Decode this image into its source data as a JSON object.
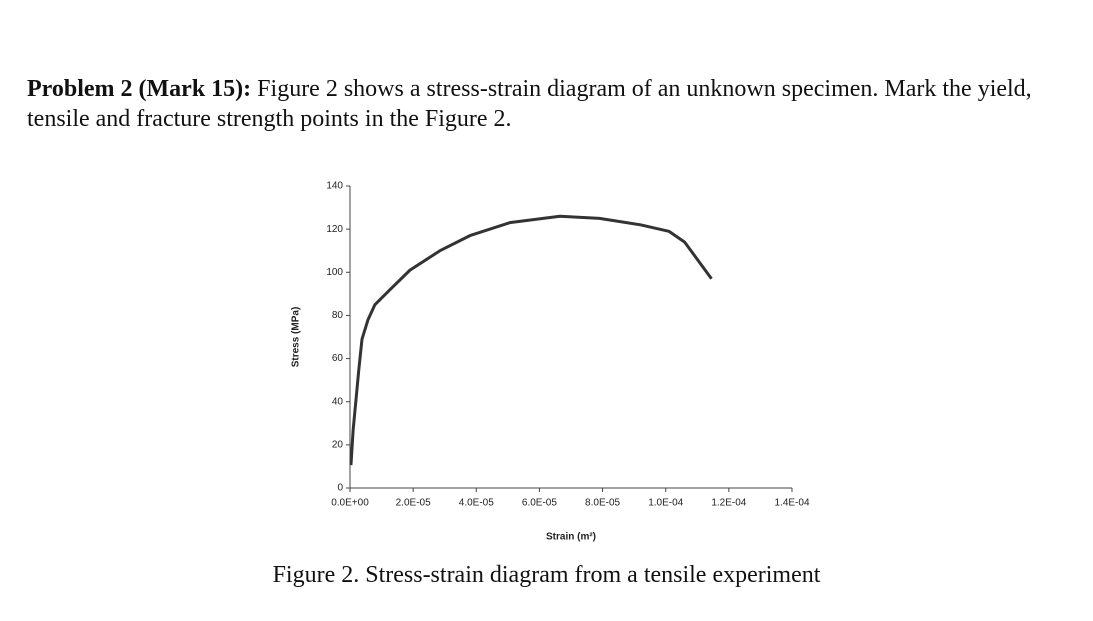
{
  "problem": {
    "label": "Problem 2 (Mark 15):",
    "text": "Figure 2 shows a stress-strain diagram of an unknown specimen. Mark the yield, tensile and fracture strength points in the Figure 2."
  },
  "caption": "Figure 2. Stress-strain diagram from a tensile experiment",
  "chart_data": {
    "type": "line",
    "xlabel": "Strain (m²)",
    "ylabel": "Stress (MPa)",
    "x": [
      3e-07,
      1e-06,
      1.9e-06,
      2.8e-06,
      3.8e-06,
      5.7e-06,
      7.9e-06,
      1.27e-05,
      1.9e-05,
      2.85e-05,
      3.8e-05,
      5.06e-05,
      6.65e-05,
      7.9e-05,
      9.2e-05,
      0.000101,
      0.000106,
      0.0001145
    ],
    "series": [
      {
        "name": "Stress",
        "color": "#333333",
        "values": [
          10.6,
          27,
          41,
          55,
          69,
          78,
          85,
          92,
          101,
          110,
          117,
          123,
          126,
          125,
          122,
          119,
          114,
          97
        ]
      }
    ],
    "xlim": [
      0,
      0.00014
    ],
    "ylim": [
      0,
      140
    ],
    "xticks": [
      {
        "value": 0,
        "label": "0.0E+00"
      },
      {
        "value": 2e-05,
        "label": "2.0E-05"
      },
      {
        "value": 4e-05,
        "label": "4.0E-05"
      },
      {
        "value": 6e-05,
        "label": "6.0E-05"
      },
      {
        "value": 8e-05,
        "label": "8.0E-05"
      },
      {
        "value": 0.0001,
        "label": "1.0E-04"
      },
      {
        "value": 0.00012,
        "label": "1.2E-04"
      },
      {
        "value": 0.00014,
        "label": "1.4E-04"
      }
    ],
    "yticks": [
      0,
      20,
      40,
      60,
      80,
      100,
      120,
      140
    ]
  }
}
